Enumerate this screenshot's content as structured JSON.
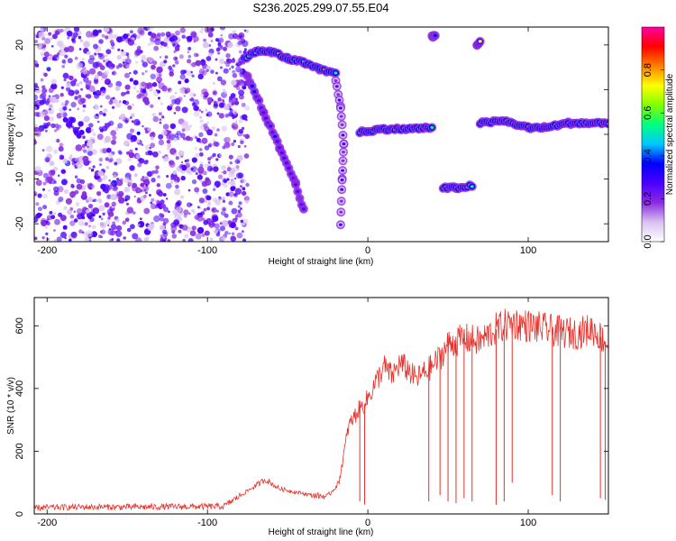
{
  "title": "S236.2025.299.07.55.E04",
  "chart_data": [
    {
      "type": "heatmap",
      "name": "spectrogram",
      "xlabel": "Height of straight line (km)",
      "ylabel": "Frequency (Hz)",
      "xlim": [
        -208,
        150
      ],
      "ylim": [
        -24,
        24
      ],
      "xticks": [
        -200,
        -100,
        0,
        100
      ],
      "xtick_labels": [
        "-200",
        "-100",
        "0",
        "100"
      ],
      "yticks": [
        -20,
        -10,
        0,
        10,
        20
      ],
      "ytick_labels": [
        "-20",
        "-10",
        "0",
        "10",
        "20"
      ],
      "colorbar": {
        "label": "Normalized spectral amplitude",
        "range": [
          0,
          1
        ],
        "ticks": [
          0,
          0.2,
          0.4,
          0.6,
          0.8
        ],
        "tick_labels": [
          "0.0",
          "0.2",
          "0.4",
          "0.6",
          "0.8"
        ],
        "colors": [
          "#ffffff",
          "#d9c2f0",
          "#8a2be2",
          "#4b00ff",
          "#0000ff",
          "#00c8ff",
          "#00ff80",
          "#80ff00",
          "#ffff00",
          "#ff8000",
          "#ff0000",
          "#ff00a0"
        ]
      },
      "noise_region": {
        "x_range": [
          -208,
          -75
        ],
        "y_range": [
          -24,
          24
        ]
      },
      "tracks": [
        {
          "name": "upper-band",
          "points": [
            [
              -77,
              17
            ],
            [
              -70,
              18.5
            ],
            [
              -60,
              18.5
            ],
            [
              -50,
              17
            ],
            [
              -40,
              16
            ],
            [
              -30,
              14.5
            ],
            [
              -20,
              13.5
            ]
          ],
          "peak": 0.75
        },
        {
          "name": "descending-trace",
          "points": [
            [
              -75,
              13
            ],
            [
              -65,
              5
            ],
            [
              -55,
              -3
            ],
            [
              -45,
              -11
            ],
            [
              -40,
              -17
            ]
          ],
          "peak": 0.35
        },
        {
          "name": "near-zero-trace",
          "points": [
            [
              -20,
              12
            ],
            [
              -17,
              6
            ],
            [
              -15,
              -2
            ],
            [
              -16,
              -10
            ],
            [
              -17,
              -20
            ]
          ],
          "peak": 0.3
        },
        {
          "name": "main-band",
          "points": [
            [
              -5,
              0.5
            ],
            [
              10,
              1.2
            ],
            [
              25,
              1.2
            ],
            [
              40,
              1.5
            ]
          ],
          "peak": 0.85
        },
        {
          "name": "offset-band",
          "points": [
            [
              47,
              -12
            ],
            [
              55,
              -12
            ],
            [
              65,
              -11.5
            ]
          ],
          "peak": 0.85
        },
        {
          "name": "upper-right-band",
          "points": [
            [
              70,
              2.5
            ],
            [
              85,
              3
            ],
            [
              100,
              1.5
            ],
            [
              110,
              1.5
            ],
            [
              125,
              2.5
            ],
            [
              150,
              2.5
            ]
          ],
          "peak": 0.85
        },
        {
          "name": "spot-44",
          "points": [
            [
              40,
              22
            ],
            [
              42,
              22
            ]
          ],
          "peak": 0.5
        },
        {
          "name": "spot-68",
          "points": [
            [
              68,
              20
            ],
            [
              70,
              20.5
            ]
          ],
          "peak": 0.7
        }
      ]
    },
    {
      "type": "line",
      "name": "snr",
      "xlabel": "Height of straight line (km)",
      "ylabel": "SNR (10 * v/v)",
      "xlim": [
        -208,
        150
      ],
      "ylim": [
        0,
        690
      ],
      "xticks": [
        -200,
        -100,
        0,
        100
      ],
      "xtick_labels": [
        "-200",
        "-100",
        "0",
        "100"
      ],
      "yticks": [
        0,
        200,
        400,
        600
      ],
      "ytick_labels": [
        "0",
        "200",
        "400",
        "600"
      ],
      "color": "#e8302a",
      "x": [
        -208,
        -180,
        -150,
        -120,
        -90,
        -64,
        -55,
        -45,
        -35,
        -25,
        -18,
        -12,
        -6,
        -2,
        5,
        10,
        15,
        20,
        25,
        30,
        35,
        40,
        45,
        50,
        60,
        70,
        80,
        90,
        100,
        110,
        120,
        130,
        140,
        150
      ],
      "values": [
        20,
        22,
        22,
        23,
        24,
        110,
        80,
        70,
        60,
        55,
        100,
        280,
        330,
        350,
        420,
        470,
        440,
        480,
        460,
        430,
        450,
        470,
        500,
        540,
        560,
        550,
        590,
        610,
        600,
        590,
        580,
        575,
        590,
        540
      ],
      "dropouts": [
        [
          -5,
          40
        ],
        [
          -2,
          30
        ],
        [
          38,
          40
        ],
        [
          45,
          60
        ],
        [
          50,
          40
        ],
        [
          55,
          35
        ],
        [
          60,
          50
        ],
        [
          65,
          40
        ],
        [
          80,
          30
        ],
        [
          85,
          40
        ],
        [
          90,
          100
        ],
        [
          115,
          60
        ],
        [
          120,
          40
        ],
        [
          145,
          50
        ],
        [
          148,
          45
        ]
      ]
    }
  ]
}
